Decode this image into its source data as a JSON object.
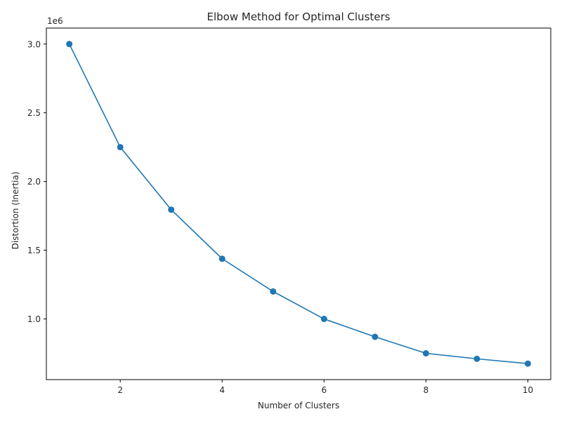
{
  "chart_data": {
    "type": "line",
    "title": "Elbow Method for Optimal Clusters",
    "xlabel": "Number of Clusters",
    "ylabel": "Distortion (Inertia)",
    "y_offset_label": "1e6",
    "x": [
      1,
      2,
      3,
      4,
      5,
      6,
      7,
      8,
      9,
      10
    ],
    "series": [
      {
        "values": [
          3000000,
          2250000,
          1795000,
          1438000,
          1200000,
          1000000,
          870000,
          750000,
          710000,
          675000
        ],
        "color": "#1f77b4",
        "marker": "circle"
      }
    ],
    "xlim": [
      0.55,
      10.45
    ],
    "ylim": [
      558750,
      3116250
    ],
    "xticks": [
      2,
      4,
      6,
      8,
      10
    ],
    "xtick_labels": [
      "2",
      "4",
      "6",
      "8",
      "10"
    ],
    "yticks": [
      1000000,
      1500000,
      2000000,
      2500000,
      3000000
    ],
    "ytick_labels": [
      "1.0",
      "1.5",
      "2.0",
      "2.5",
      "3.0"
    ],
    "grid": false,
    "legend": "none"
  }
}
